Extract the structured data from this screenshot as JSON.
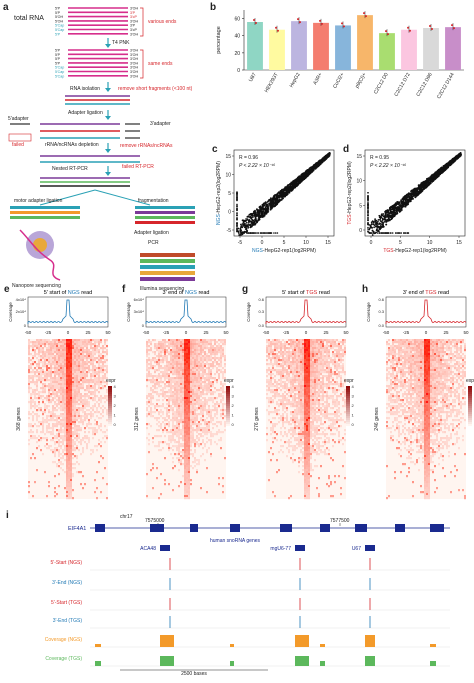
{
  "panel_labels": {
    "a": "a",
    "b": "b",
    "c": "c",
    "d": "d",
    "e": "e",
    "f": "f",
    "g": "g",
    "h": "h",
    "i": "i"
  },
  "panel_a": {
    "total_rna": "total RNA",
    "various_ends": "various ends",
    "t4_pnk": "T4 PNK",
    "same_ends": "same ends",
    "rna_isolation": "RNA isolation",
    "remove_short": "remove short fragments (<100 nt)",
    "adapter_ligation": "Adapter ligation",
    "adapter5": "5'adapter",
    "adapter3": "3'adapter",
    "failed": "failed",
    "depletion": "rRNA/ncRNAs depletion",
    "remove_rrna": "remove rRNAs/ncRNAs",
    "nested_rtpcr": "Nested RT-PCR",
    "failed_rtpcr": "failed RT-PCR",
    "motor_ligation": "motor adapter ligation",
    "fragmentation": "fragmentation",
    "adapter_ligation2": "Adapter ligation",
    "pcr": "PCR",
    "nanopore": "Nanopore sequencing",
    "illumina": "Illumina sequencing",
    "end_labels": [
      "5'P",
      "5'P",
      "5'OH",
      "5'OH",
      "5'Cap",
      "5'Cap",
      "5'P"
    ],
    "three_end_labels": [
      "3'OH",
      "3'P",
      "3'cP",
      "3'OH",
      "3'P",
      "3'cP",
      "3'OH"
    ]
  },
  "panel_b": {
    "ylabel": "percentage",
    "yticks": [
      "0",
      "20",
      "40",
      "60"
    ],
    "chart_data": {
      "type": "bar",
      "categories": [
        "U87",
        "HEK293T",
        "HepG2",
        "A3R+",
        "CoCl2+",
        "p9(Cl)+",
        "C2C12 D0",
        "C2C12 D72",
        "C2C12 D96",
        "C2C12 D144"
      ],
      "values": [
        56,
        47,
        57,
        55,
        52,
        64,
        43,
        47,
        49,
        50
      ],
      "colors": [
        "#8fd6c4",
        "#fffaa0",
        "#bcb5e0",
        "#f47d6f",
        "#87b5db",
        "#f7b66a",
        "#a9dd70",
        "#fbc6e0",
        "#d9d9d9",
        "#c88ec9"
      ],
      "ylim": [
        0,
        70
      ]
    }
  },
  "panel_c": {
    "r_text": "R = 0.96",
    "p_text": "P < 2.22 × 10⁻¹⁶",
    "xlabel_prefix": "NGS",
    "xlabel_rest": "-HepG2-rep1(log2RPM)",
    "ylabel_prefix": "NGS",
    "ylabel_rest": "-HepG2-rep2(log2RPM)",
    "xticks": [
      "-5",
      "0",
      "5",
      "10",
      "15"
    ],
    "yticks": [
      "-5",
      "0",
      "5",
      "10",
      "15"
    ]
  },
  "panel_d": {
    "r_text": "R = 0.95",
    "p_text": "P < 2.22 × 10⁻¹⁶",
    "xlabel_prefix": "TGS",
    "xlabel_rest": "-HepG2-rep1(log2RPM)",
    "ylabel_prefix": "TGS",
    "ylabel_rest": "-HepG2-rep2(log2RPM)",
    "xticks": [
      "0",
      "5",
      "10",
      "15"
    ],
    "yticks": [
      "0",
      "5",
      "10",
      "15"
    ]
  },
  "heatmaps": [
    {
      "id": "e",
      "title_prefix": "5' start of ",
      "title_tech": "NGS",
      "title_suffix": " read",
      "genes": "368 genes",
      "color": "#1f78b4",
      "ytick_top": "4x10⁴",
      "ytick_mid": "2x10⁴",
      "ytick_bot": "0",
      "xticks": [
        "-50",
        "-25",
        "0",
        "25",
        "50"
      ]
    },
    {
      "id": "f",
      "title_prefix": "3' end of ",
      "title_tech": "NGS",
      "title_suffix": " read",
      "genes": "312 genes",
      "color": "#1f78b4",
      "ytick_top": "6x10⁴",
      "ytick_mid": "3x10⁴",
      "ytick_bot": "0",
      "xticks": [
        "-50",
        "-25",
        "0",
        "25",
        "50"
      ]
    },
    {
      "id": "g",
      "title_prefix": "5' start of ",
      "title_tech": "TGS",
      "title_suffix": " read",
      "genes": "276 genes",
      "color": "#d6262b",
      "ytick_top": "0.6",
      "ytick_mid": "0.3",
      "ytick_bot": "0.0",
      "xticks": [
        "-50",
        "-25",
        "0",
        "25",
        "50"
      ]
    },
    {
      "id": "h",
      "title_prefix": "3' end of ",
      "title_tech": "TGS",
      "title_suffix": " read",
      "genes": "246 genes",
      "color": "#d6262b",
      "ytick_top": "0.6",
      "ytick_mid": "0.3",
      "ytick_bot": "0.0",
      "xticks": [
        "-50",
        "-25",
        "0",
        "25",
        "50"
      ]
    }
  ],
  "legend": {
    "title": "expr",
    "ticks": [
      "4",
      "3",
      "2",
      "1",
      "0"
    ]
  },
  "panel_i": {
    "gene": "EIF4A1",
    "chr": "chr17",
    "pos1": "7575000",
    "pos2": "7577500",
    "snorna_label": "human snoRNA genes",
    "snornas": [
      "ACA48",
      "mgU6-77",
      "U67"
    ],
    "tracks": [
      "5'-Start (NGS)",
      "3'-End (NGS)",
      "5'-Start (TGS)",
      "3'-End (TGS)",
      "Coverage (NGS)",
      "Coverage (TGS)"
    ],
    "track_colors": [
      "#d6262b",
      "#1f78b4",
      "#d6262b",
      "#1f78b4",
      "#f39a2a",
      "#5cb85c"
    ],
    "scale": "2500 bases"
  }
}
